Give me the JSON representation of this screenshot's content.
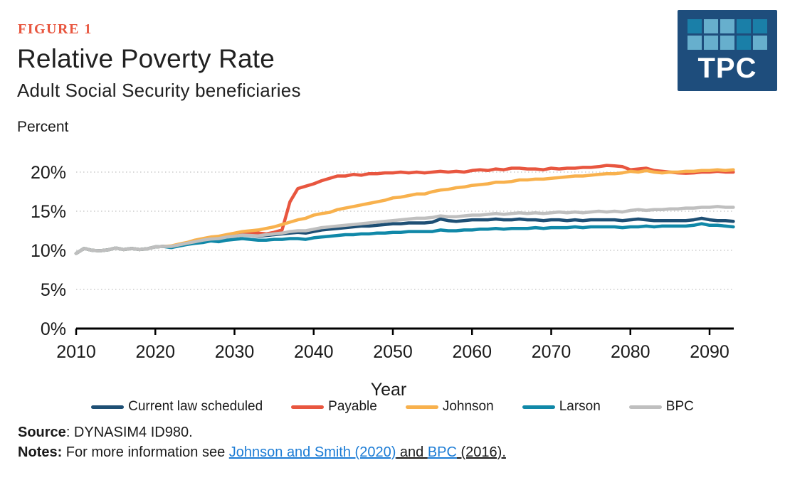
{
  "colors": {
    "accent_red": "#e8563f",
    "link_blue": "#1c7cd5",
    "text_dark": "#212121",
    "logo_navy": "#1e4d7c",
    "logo_square_dark": "#1a7fa8",
    "logo_square_light": "#67afcd",
    "gridline_gray": "#d8d8d8"
  },
  "header": {
    "figure_label": "FIGURE 1",
    "title": "Relative Poverty Rate",
    "subtitle": "Adult Social Security beneficiaries",
    "logo": {
      "text": "TPC",
      "squares": [
        "dark",
        "light",
        "light",
        "dark",
        "dark",
        "light",
        "light",
        "light",
        "dark",
        "light"
      ]
    }
  },
  "footer": {
    "source_label": "Source",
    "source_text": ": DYNASIM4 ID980.",
    "notes_label": "Notes:",
    "notes_prefix": " For more information see ",
    "link1": "Johnson and Smith (2020)",
    "notes_mid": " and ",
    "link2": "BPC",
    "notes_suffix": " (2016)."
  },
  "chart_data": {
    "type": "line",
    "title": "Relative Poverty Rate",
    "subtitle": "Adult Social Security beneficiaries",
    "xlabel": "Year",
    "ylabel": "Percent",
    "ylim": [
      0,
      22
    ],
    "x_range": [
      2010,
      2093
    ],
    "grid": "horizontal-dotted",
    "legend_position": "bottom",
    "y_ticks": [
      {
        "value": 0,
        "label": "0%"
      },
      {
        "value": 5,
        "label": "5%"
      },
      {
        "value": 10,
        "label": "10%"
      },
      {
        "value": 15,
        "label": "15%"
      },
      {
        "value": 20,
        "label": "20%"
      }
    ],
    "x_ticks": [
      {
        "value": 2010,
        "label": "2010"
      },
      {
        "value": 2020,
        "label": "2020"
      },
      {
        "value": 2030,
        "label": "2030"
      },
      {
        "value": 2040,
        "label": "2040"
      },
      {
        "value": 2050,
        "label": "2050"
      },
      {
        "value": 2060,
        "label": "2060"
      },
      {
        "value": 2070,
        "label": "2070"
      },
      {
        "value": 2080,
        "label": "2080"
      },
      {
        "value": 2090,
        "label": "2090"
      }
    ],
    "years": [
      2010,
      2011,
      2012,
      2013,
      2014,
      2015,
      2016,
      2017,
      2018,
      2019,
      2020,
      2021,
      2022,
      2023,
      2024,
      2025,
      2026,
      2027,
      2028,
      2029,
      2030,
      2031,
      2032,
      2033,
      2034,
      2035,
      2036,
      2037,
      2038,
      2039,
      2040,
      2041,
      2042,
      2043,
      2044,
      2045,
      2046,
      2047,
      2048,
      2049,
      2050,
      2051,
      2052,
      2053,
      2054,
      2055,
      2056,
      2057,
      2058,
      2059,
      2060,
      2061,
      2062,
      2063,
      2064,
      2065,
      2066,
      2067,
      2068,
      2069,
      2070,
      2071,
      2072,
      2073,
      2074,
      2075,
      2076,
      2077,
      2078,
      2079,
      2080,
      2081,
      2082,
      2083,
      2084,
      2085,
      2086,
      2087,
      2088,
      2089,
      2090,
      2091,
      2092,
      2093
    ],
    "series": [
      {
        "name": "Current law scheduled",
        "color": "#1e4f74",
        "values": [
          9.6,
          10.25,
          10.0,
          9.95,
          10.05,
          10.3,
          10.1,
          10.25,
          10.1,
          10.2,
          10.45,
          10.5,
          10.5,
          10.7,
          10.9,
          11.1,
          11.3,
          11.4,
          11.5,
          11.7,
          11.8,
          11.95,
          11.9,
          11.8,
          11.9,
          12.0,
          12.1,
          12.2,
          12.3,
          12.2,
          12.4,
          12.6,
          12.7,
          12.8,
          12.9,
          13.0,
          13.1,
          13.1,
          13.2,
          13.3,
          13.4,
          13.4,
          13.5,
          13.5,
          13.5,
          13.6,
          14.0,
          13.8,
          13.7,
          13.8,
          13.9,
          13.9,
          13.9,
          14.0,
          13.9,
          13.9,
          14.0,
          13.9,
          13.9,
          13.8,
          13.9,
          13.9,
          13.8,
          13.9,
          13.8,
          13.9,
          13.9,
          13.9,
          13.9,
          13.8,
          13.9,
          14.0,
          13.9,
          13.8,
          13.8,
          13.8,
          13.8,
          13.8,
          13.9,
          14.1,
          13.9,
          13.8,
          13.8,
          13.7
        ]
      },
      {
        "name": "Payable",
        "color": "#e8563f",
        "values": [
          9.6,
          10.25,
          10.0,
          9.95,
          10.05,
          10.3,
          10.1,
          10.25,
          10.1,
          10.2,
          10.45,
          10.5,
          10.5,
          10.7,
          10.95,
          11.2,
          11.4,
          11.6,
          11.7,
          11.9,
          12.1,
          12.3,
          12.3,
          12.2,
          12.1,
          12.3,
          12.6,
          16.2,
          17.9,
          18.2,
          18.5,
          18.9,
          19.2,
          19.5,
          19.5,
          19.7,
          19.6,
          19.8,
          19.8,
          19.9,
          19.9,
          20.0,
          19.9,
          20.0,
          19.9,
          20.0,
          20.1,
          20.0,
          20.1,
          20.0,
          20.2,
          20.3,
          20.2,
          20.4,
          20.3,
          20.5,
          20.5,
          20.4,
          20.4,
          20.3,
          20.5,
          20.4,
          20.5,
          20.5,
          20.6,
          20.6,
          20.7,
          20.85,
          20.8,
          20.7,
          20.3,
          20.4,
          20.5,
          20.2,
          20.1,
          20.0,
          19.9,
          19.85,
          19.9,
          20.0,
          20.0,
          20.1,
          20.0,
          20.0
        ]
      },
      {
        "name": "Johnson",
        "color": "#f8b14d",
        "values": [
          9.6,
          10.25,
          10.0,
          9.95,
          10.05,
          10.3,
          10.1,
          10.25,
          10.1,
          10.2,
          10.45,
          10.5,
          10.55,
          10.8,
          11.0,
          11.3,
          11.5,
          11.7,
          11.8,
          12.0,
          12.2,
          12.4,
          12.5,
          12.6,
          12.8,
          13.0,
          13.3,
          13.6,
          13.9,
          14.1,
          14.5,
          14.7,
          14.85,
          15.2,
          15.4,
          15.6,
          15.8,
          16.0,
          16.2,
          16.4,
          16.7,
          16.8,
          17.0,
          17.2,
          17.2,
          17.5,
          17.7,
          17.8,
          18.0,
          18.1,
          18.3,
          18.4,
          18.5,
          18.7,
          18.7,
          18.8,
          19.0,
          19.0,
          19.1,
          19.1,
          19.2,
          19.3,
          19.4,
          19.5,
          19.5,
          19.6,
          19.7,
          19.8,
          19.8,
          19.9,
          20.1,
          20.0,
          20.2,
          20.0,
          19.9,
          20.0,
          20.0,
          20.1,
          20.1,
          20.2,
          20.2,
          20.3,
          20.2,
          20.3
        ]
      },
      {
        "name": "Larson",
        "color": "#1088a8",
        "values": [
          9.6,
          10.25,
          10.0,
          9.95,
          10.05,
          10.3,
          10.1,
          10.25,
          10.1,
          10.2,
          10.45,
          10.5,
          10.35,
          10.55,
          10.75,
          10.9,
          11.0,
          11.2,
          11.1,
          11.3,
          11.4,
          11.5,
          11.4,
          11.3,
          11.3,
          11.4,
          11.4,
          11.5,
          11.5,
          11.4,
          11.6,
          11.7,
          11.8,
          11.9,
          12.0,
          12.0,
          12.1,
          12.1,
          12.2,
          12.2,
          12.3,
          12.3,
          12.4,
          12.4,
          12.4,
          12.4,
          12.6,
          12.5,
          12.5,
          12.6,
          12.6,
          12.7,
          12.7,
          12.8,
          12.7,
          12.8,
          12.8,
          12.8,
          12.9,
          12.8,
          12.9,
          12.9,
          12.9,
          13.0,
          12.9,
          13.0,
          13.0,
          13.0,
          13.0,
          12.9,
          13.0,
          13.0,
          13.1,
          13.0,
          13.1,
          13.1,
          13.1,
          13.1,
          13.2,
          13.4,
          13.2,
          13.2,
          13.1,
          13.0
        ]
      },
      {
        "name": "BPC",
        "color": "#bfbfbf",
        "values": [
          9.6,
          10.25,
          10.0,
          9.95,
          10.05,
          10.3,
          10.1,
          10.25,
          10.1,
          10.2,
          10.45,
          10.5,
          10.5,
          10.7,
          10.9,
          11.1,
          11.3,
          11.45,
          11.5,
          11.7,
          11.8,
          11.95,
          11.9,
          11.85,
          12.0,
          12.1,
          12.2,
          12.4,
          12.5,
          12.5,
          12.7,
          12.9,
          13.0,
          13.1,
          13.2,
          13.3,
          13.4,
          13.5,
          13.6,
          13.7,
          13.8,
          13.9,
          14.0,
          14.1,
          14.1,
          14.2,
          14.4,
          14.3,
          14.3,
          14.4,
          14.5,
          14.5,
          14.6,
          14.7,
          14.6,
          14.7,
          14.8,
          14.7,
          14.8,
          14.7,
          14.8,
          14.9,
          14.8,
          14.9,
          14.8,
          14.9,
          15.0,
          14.9,
          15.0,
          14.9,
          15.1,
          15.2,
          15.1,
          15.2,
          15.2,
          15.3,
          15.3,
          15.4,
          15.4,
          15.5,
          15.5,
          15.6,
          15.5,
          15.5
        ]
      }
    ]
  }
}
